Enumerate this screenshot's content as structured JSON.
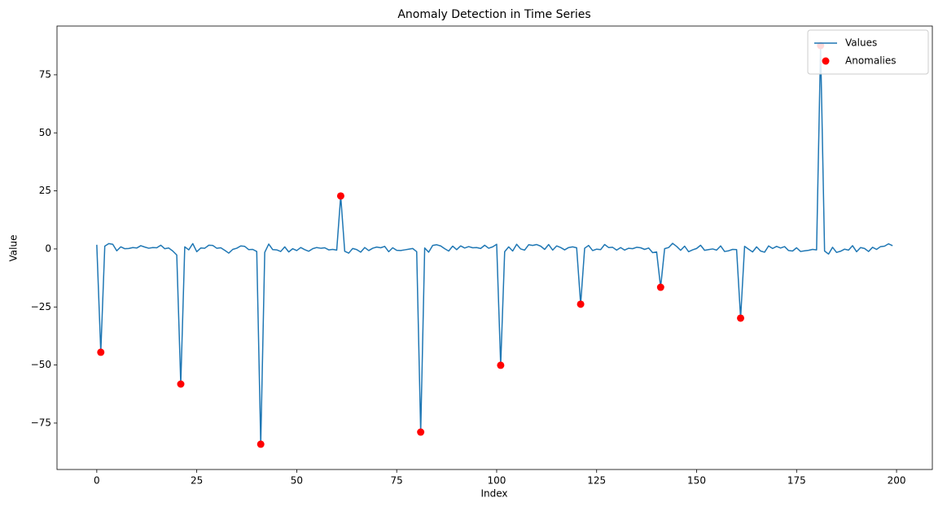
{
  "chart_data": {
    "type": "line",
    "title": "Anomaly Detection in Time Series",
    "x_label": "Index",
    "y_label": "Value",
    "xlim": [
      -9.95,
      208.95
    ],
    "ylim": [
      -95,
      96
    ],
    "xticks": [
      0,
      25,
      50,
      75,
      100,
      125,
      150,
      175,
      200
    ],
    "yticks": [
      {
        "value": -75,
        "label": "−75"
      },
      {
        "value": -50,
        "label": "−50"
      },
      {
        "value": -25,
        "label": "−25"
      },
      0,
      25,
      50,
      75
    ],
    "grid": false,
    "legend": "upper right",
    "series": [
      {
        "name": "Values",
        "type": "line",
        "color": "#1f77b4",
        "x": [
          0,
          1,
          2,
          3,
          4,
          5,
          6,
          7,
          8,
          9,
          10,
          11,
          12,
          13,
          14,
          15,
          16,
          17,
          18,
          19,
          20,
          21,
          22,
          23,
          24,
          25,
          26,
          27,
          28,
          29,
          30,
          31,
          32,
          33,
          34,
          35,
          36,
          37,
          38,
          39,
          40,
          41,
          42,
          43,
          44,
          45,
          46,
          47,
          48,
          49,
          50,
          51,
          52,
          53,
          54,
          55,
          56,
          57,
          58,
          59,
          60,
          61,
          62,
          63,
          64,
          65,
          66,
          67,
          68,
          69,
          70,
          71,
          72,
          73,
          74,
          75,
          76,
          77,
          78,
          79,
          80,
          81,
          82,
          83,
          84,
          85,
          86,
          87,
          88,
          89,
          90,
          91,
          92,
          93,
          94,
          95,
          96,
          97,
          98,
          99,
          100,
          101,
          102,
          103,
          104,
          105,
          106,
          107,
          108,
          109,
          110,
          111,
          112,
          113,
          114,
          115,
          116,
          117,
          118,
          119,
          120,
          121,
          122,
          123,
          124,
          125,
          126,
          127,
          128,
          129,
          130,
          131,
          132,
          133,
          134,
          135,
          136,
          137,
          138,
          139,
          140,
          141,
          142,
          143,
          144,
          145,
          146,
          147,
          148,
          149,
          150,
          151,
          152,
          153,
          154,
          155,
          156,
          157,
          158,
          159,
          160,
          161,
          162,
          163,
          164,
          165,
          166,
          167,
          168,
          169,
          170,
          171,
          172,
          173,
          174,
          175,
          176,
          177,
          178,
          179,
          180,
          181,
          182,
          183,
          184,
          185,
          186,
          187,
          188,
          189,
          190,
          191,
          192,
          193,
          194,
          195,
          196,
          197,
          198,
          199
        ],
        "values": [
          1.8,
          -44.5,
          1.2,
          2.3,
          2.0,
          -0.8,
          0.9,
          0.1,
          0.2,
          0.6,
          0.4,
          1.4,
          0.8,
          0.3,
          0.6,
          0.5,
          1.6,
          0.1,
          0.4,
          -0.9,
          -2.6,
          -58.2,
          0.9,
          -0.4,
          2.3,
          -1.2,
          0.4,
          0.3,
          1.6,
          1.5,
          0.3,
          0.5,
          -0.6,
          -1.8,
          -0.2,
          0.3,
          1.3,
          1.1,
          -0.3,
          -0.2,
          -1.1,
          -84.1,
          -1.5,
          2.1,
          -0.3,
          -0.4,
          -1.1,
          0.9,
          -1.3,
          0.1,
          -0.7,
          0.6,
          -0.3,
          -1.0,
          0.1,
          0.6,
          0.3,
          0.5,
          -0.4,
          -0.2,
          -0.5,
          22.8,
          -1.0,
          -1.8,
          0.2,
          -0.3,
          -1.4,
          0.6,
          -0.7,
          0.3,
          0.8,
          0.5,
          1.1,
          -1.2,
          0.5,
          -0.6,
          -0.7,
          -0.4,
          -0.1,
          0.2,
          -1.2,
          -78.9,
          0.4,
          -1.4,
          1.5,
          1.8,
          1.3,
          0.1,
          -0.9,
          1.2,
          -0.3,
          1.3,
          0.4,
          1.0,
          0.5,
          0.6,
          0.2,
          1.6,
          0.3,
          0.9,
          2.0,
          -50.1,
          -1.2,
          0.9,
          -0.9,
          2.0,
          0.0,
          -0.5,
          1.8,
          1.5,
          1.9,
          1.2,
          -0.2,
          1.9,
          -0.5,
          1.3,
          0.6,
          -0.4,
          0.6,
          0.9,
          0.5,
          -23.8,
          0.3,
          1.5,
          -0.7,
          -0.1,
          -0.3,
          1.9,
          0.6,
          0.7,
          -0.5,
          0.6,
          -0.5,
          0.3,
          0.1,
          0.7,
          0.5,
          -0.2,
          0.4,
          -1.6,
          -1.3,
          -16.5,
          0.1,
          0.6,
          2.4,
          1.1,
          -0.6,
          1.2,
          -1.2,
          -0.4,
          0.2,
          1.6,
          -0.6,
          -0.3,
          0.0,
          -0.5,
          1.3,
          -1.1,
          -0.8,
          -0.2,
          -0.3,
          -29.8,
          1.1,
          -0.1,
          -1.3,
          0.9,
          -0.9,
          -1.4,
          1.3,
          0.2,
          1.1,
          0.4,
          1.0,
          -0.7,
          -0.9,
          0.5,
          -1.1,
          -0.8,
          -0.6,
          -0.2,
          -0.4,
          87.6,
          -0.9,
          -2.2,
          0.7,
          -1.5,
          -1.0,
          -0.1,
          -0.5,
          1.4,
          -1.2,
          0.6,
          0.2,
          -1.1,
          0.7,
          -0.2,
          1.0,
          1.2,
          2.2,
          1.4
        ]
      },
      {
        "name": "Anomalies",
        "type": "scatter",
        "color": "#ff0000",
        "x": [
          1,
          21,
          41,
          61,
          81,
          101,
          121,
          141,
          161,
          181
        ],
        "values": [
          -44.5,
          -58.2,
          -84.1,
          22.8,
          -78.9,
          -50.1,
          -23.8,
          -16.5,
          -29.8,
          87.6
        ]
      }
    ]
  }
}
